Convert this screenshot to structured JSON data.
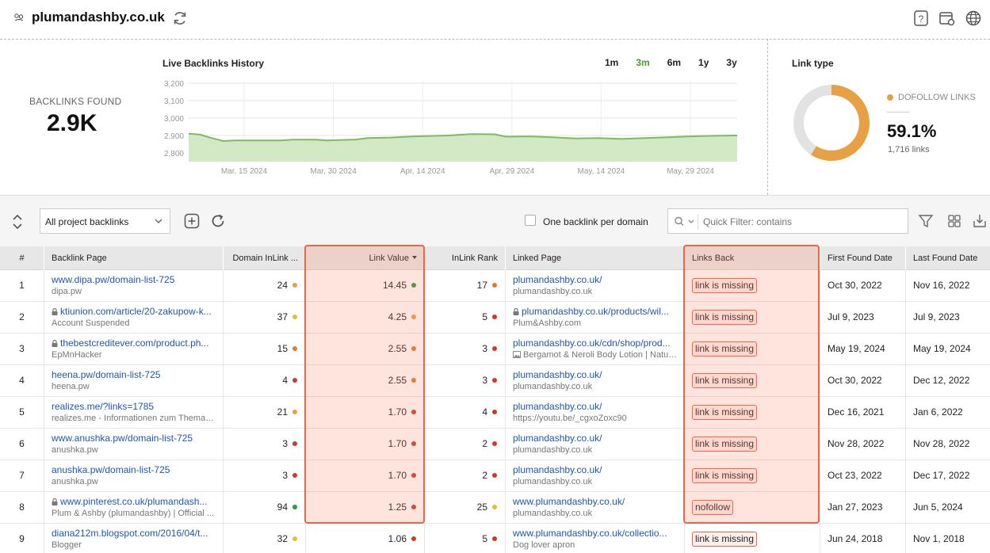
{
  "header": {
    "site": "plumandashby.co.uk"
  },
  "summary": {
    "label": "BACKLINKS FOUND",
    "value": "2.9K"
  },
  "history_chart": {
    "title": "Live Backlinks History",
    "ranges": [
      "1m",
      "3m",
      "6m",
      "1y",
      "3y"
    ],
    "active_range": "3m",
    "chart_data": {
      "type": "area",
      "ylim": [
        2750,
        3200
      ],
      "yticks": [
        "3,200",
        "3,100",
        "3,000",
        "2,900",
        "2,800"
      ],
      "ytick_values": [
        3200,
        3100,
        3000,
        2900,
        2800
      ],
      "xticks": [
        "Mar, 15 2024",
        "Mar, 30 2024",
        "Apr, 14 2024",
        "Apr, 29 2024",
        "May, 14 2024",
        "May, 29 2024"
      ],
      "start": "2024-03-04",
      "end": "2024-06-07",
      "points": [
        [
          "2024-03-04",
          2910
        ],
        [
          "2024-03-06",
          2905
        ],
        [
          "2024-03-08",
          2885
        ],
        [
          "2024-03-10",
          2868
        ],
        [
          "2024-03-12",
          2872
        ],
        [
          "2024-03-20",
          2872
        ],
        [
          "2024-03-22",
          2876
        ],
        [
          "2024-03-26",
          2876
        ],
        [
          "2024-03-28",
          2872
        ],
        [
          "2024-04-02",
          2877
        ],
        [
          "2024-04-04",
          2885
        ],
        [
          "2024-04-08",
          2888
        ],
        [
          "2024-04-12",
          2895
        ],
        [
          "2024-04-18",
          2900
        ],
        [
          "2024-04-22",
          2908
        ],
        [
          "2024-04-26",
          2907
        ],
        [
          "2024-04-28",
          2893
        ],
        [
          "2024-05-02",
          2895
        ],
        [
          "2024-05-06",
          2890
        ],
        [
          "2024-05-10",
          2883
        ],
        [
          "2024-05-14",
          2885
        ],
        [
          "2024-05-18",
          2880
        ],
        [
          "2024-05-22",
          2885
        ],
        [
          "2024-05-26",
          2890
        ],
        [
          "2024-05-30",
          2895
        ],
        [
          "2024-06-03",
          2898
        ],
        [
          "2024-06-07",
          2900
        ]
      ],
      "fill_color": "#d3e9c6",
      "line_color": "#7dbb5e"
    }
  },
  "link_type": {
    "title": "Link type",
    "legend": "DOFOLLOW LINKS",
    "percent": "59.1%",
    "count": "1,716 links",
    "fraction": 0.591,
    "color": "#e8a045",
    "rest_color": "#e2e2e2"
  },
  "toolbar": {
    "select_value": "All project backlinks",
    "checkbox_label": "One backlink per domain",
    "filter_placeholder": "Quick Filter: contains"
  },
  "table": {
    "columns": [
      "#",
      "Backlink Page",
      "Domain InLink ...",
      "Link Value",
      "InLink Rank",
      "Linked Page",
      "Links Back",
      "First Found Date",
      "Last Found Date"
    ],
    "rows": [
      {
        "n": "1",
        "url": "www.dipa.pw/domain-list-725",
        "lock": false,
        "sub": "dipa.pw",
        "dinlink": "24",
        "dinlink_c": "#e8a045",
        "lv": "14.45",
        "lv_c": "#2e9b3e",
        "rank": "17",
        "rank_c": "#e07b2c",
        "linked": "plumandashby.co.uk/",
        "linked_lock": false,
        "linked_sub": "plumandashby.co.uk",
        "linked_img": false,
        "back": "link is missing",
        "first": "Oct 30, 2022",
        "last": "Nov 16, 2022"
      },
      {
        "n": "2",
        "url": "ktiunion.com/article/20-zakupow-k...",
        "lock": true,
        "sub": "Account Suspended",
        "dinlink": "37",
        "dinlink_c": "#e0c030",
        "lv": "4.25",
        "lv_c": "#e8a045",
        "rank": "5",
        "rank_c": "#cc3b2a",
        "linked": "plumandashby.co.uk/products/wil...",
        "linked_lock": true,
        "linked_sub": "Plum&Ashby.com",
        "linked_img": false,
        "back": "link is missing",
        "first": "Jul 9, 2023",
        "last": "Jul 9, 2023"
      },
      {
        "n": "3",
        "url": "thebestcreditever.com/product.ph...",
        "lock": true,
        "sub": "EpMnHacker",
        "dinlink": "15",
        "dinlink_c": "#e07b2c",
        "lv": "2.55",
        "lv_c": "#e07b2c",
        "rank": "3",
        "rank_c": "#cc3b2a",
        "linked": "plumandashby.co.uk/cdn/shop/prod...",
        "linked_lock": false,
        "linked_sub": "Bergamot & Neroli Body Lotion | Natur...",
        "linked_img": true,
        "back": "link is missing",
        "first": "May 19, 2024",
        "last": "May 19, 2024"
      },
      {
        "n": "4",
        "url": "heena.pw/domain-list-725",
        "lock": false,
        "sub": "heena.pw",
        "dinlink": "4",
        "dinlink_c": "#cc3b2a",
        "lv": "2.55",
        "lv_c": "#e07b2c",
        "rank": "3",
        "rank_c": "#cc3b2a",
        "linked": "plumandashby.co.uk/",
        "linked_lock": false,
        "linked_sub": "plumandashby.co.uk",
        "linked_img": false,
        "back": "link is missing",
        "first": "Oct 30, 2022",
        "last": "Dec 12, 2022"
      },
      {
        "n": "5",
        "url": "realizes.me/?links=1785",
        "lock": false,
        "sub": "realizes.me - Informationen zum Thema r...",
        "dinlink": "21",
        "dinlink_c": "#e8a045",
        "lv": "1.70",
        "lv_c": "#cc3b2a",
        "rank": "4",
        "rank_c": "#cc3b2a",
        "linked": "plumandashby.co.uk/",
        "linked_lock": false,
        "linked_sub": "https://youtu.be/_cgxoZoxc90",
        "linked_img": false,
        "back": "link is missing",
        "first": "Dec 16, 2021",
        "last": "Jan 6, 2022"
      },
      {
        "n": "6",
        "url": "www.anushka.pw/domain-list-725",
        "lock": false,
        "sub": "anushka.pw",
        "dinlink": "3",
        "dinlink_c": "#cc3b2a",
        "lv": "1.70",
        "lv_c": "#cc3b2a",
        "rank": "2",
        "rank_c": "#cc3b2a",
        "linked": "plumandashby.co.uk/",
        "linked_lock": false,
        "linked_sub": "plumandashby.co.uk",
        "linked_img": false,
        "back": "link is missing",
        "first": "Nov 28, 2022",
        "last": "Nov 28, 2022"
      },
      {
        "n": "7",
        "url": "anushka.pw/domain-list-725",
        "lock": false,
        "sub": "anushka.pw",
        "dinlink": "3",
        "dinlink_c": "#cc3b2a",
        "lv": "1.70",
        "lv_c": "#cc3b2a",
        "rank": "2",
        "rank_c": "#cc3b2a",
        "linked": "plumandashby.co.uk/",
        "linked_lock": false,
        "linked_sub": "plumandashby.co.uk",
        "linked_img": false,
        "back": "link is missing",
        "first": "Oct 23, 2022",
        "last": "Dec 17, 2022"
      },
      {
        "n": "8",
        "url": "www.pinterest.co.uk/plumandash...",
        "lock": true,
        "sub": "Plum & Ashby (plumandashby) | Official ...",
        "dinlink": "94",
        "dinlink_c": "#2e9b3e",
        "lv": "1.25",
        "lv_c": "#cc3b2a",
        "rank": "25",
        "rank_c": "#e0c030",
        "linked": "www.plumandashby.co.uk/",
        "linked_lock": false,
        "linked_sub": "plumandashby.co.uk",
        "linked_img": false,
        "back": "nofollow",
        "first": "Jan 27, 2023",
        "last": "Jun 5, 2024"
      },
      {
        "n": "9",
        "url": "diana212m.blogspot.com/2016/04/t...",
        "lock": false,
        "sub": "Blogger",
        "dinlink": "32",
        "dinlink_c": "#e0c030",
        "lv": "1.06",
        "lv_c": "#cc3b2a",
        "rank": "5",
        "rank_c": "#cc3b2a",
        "linked": "www.plumandashby.co.uk/collectio...",
        "linked_lock": false,
        "linked_sub": "Dog lover apron",
        "linked_img": false,
        "back": "link is missing",
        "first": "Jun 24, 2018",
        "last": "Nov 1, 2018"
      }
    ]
  }
}
